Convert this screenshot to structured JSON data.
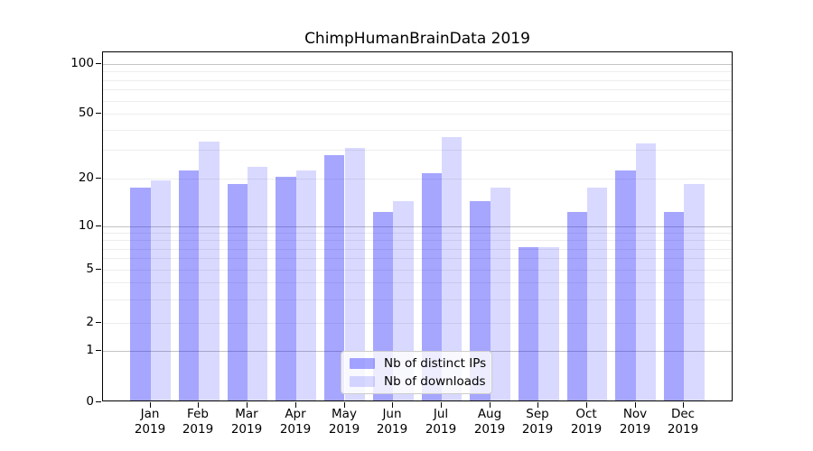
{
  "title": "ChimpHumanBrainData 2019",
  "legend": {
    "items": [
      {
        "label": "Nb of distinct IPs"
      },
      {
        "label": "Nb of downloads"
      }
    ]
  },
  "colors": {
    "ips_bar": "rgba(0,0,255,0.35)",
    "downloads_bar": "rgba(0,0,255,0.15)",
    "major_grid": "#c3c3c3",
    "minor_grid": "#ededed",
    "axis": "#000000"
  },
  "y_axis": {
    "tick_labels": [
      "100",
      "50",
      "20",
      "10",
      "5",
      "2",
      "1",
      "0"
    ],
    "tick_values": [
      100,
      50,
      20,
      10,
      5,
      2,
      1,
      0
    ],
    "scale": "symlog"
  },
  "x_axis": {
    "months": [
      "Jan",
      "Feb",
      "Mar",
      "Apr",
      "May",
      "Jun",
      "Jul",
      "Aug",
      "Sep",
      "Oct",
      "Nov",
      "Dec"
    ],
    "year_line": "2019"
  },
  "chart_data": {
    "type": "bar",
    "title": "ChimpHumanBrainData 2019",
    "categories": [
      "Jan 2019",
      "Feb 2019",
      "Mar 2019",
      "Apr 2019",
      "May 2019",
      "Jun 2019",
      "Jul 2019",
      "Aug 2019",
      "Sep 2019",
      "Oct 2019",
      "Nov 2019",
      "Dec 2019"
    ],
    "series": [
      {
        "name": "Nb of distinct IPs",
        "values": [
          17,
          22,
          18,
          20,
          27,
          12,
          21,
          14,
          7,
          12,
          22,
          12
        ]
      },
      {
        "name": "Nb of downloads",
        "values": [
          19,
          33,
          23,
          22,
          30,
          14,
          35,
          17,
          7,
          17,
          32,
          18
        ]
      }
    ],
    "xlabel": "",
    "ylabel": "",
    "y_ticks": [
      0,
      1,
      2,
      5,
      10,
      20,
      50,
      100
    ],
    "ylim": [
      0,
      130
    ],
    "grid": true,
    "legend_position": "lower center"
  }
}
